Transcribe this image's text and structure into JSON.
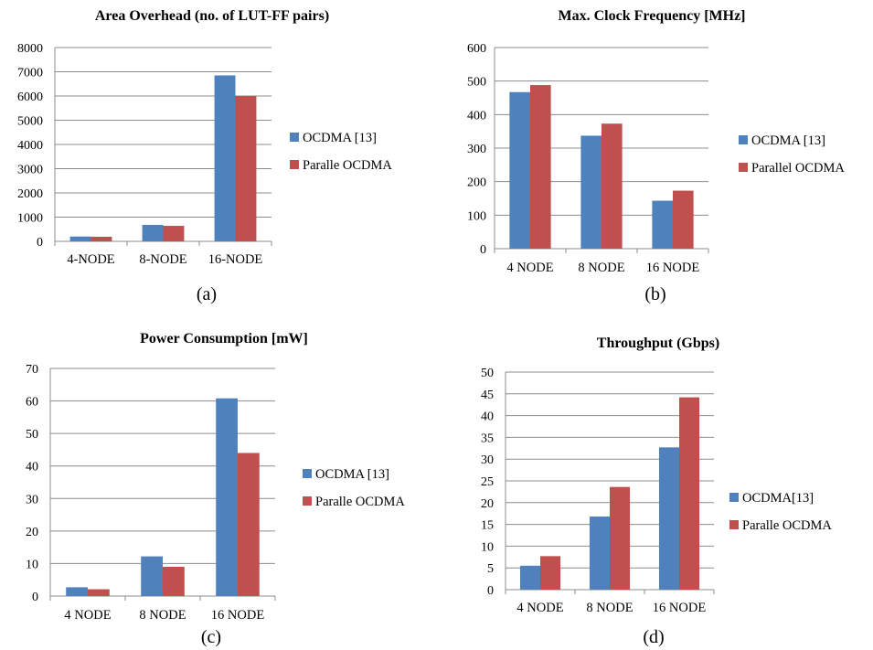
{
  "chart_data": [
    {
      "type": "bar",
      "title": "Area Overhead (no. of LUT-FF pairs)",
      "caption": "(a)",
      "categories": [
        "4-NODE",
        "8-NODE",
        "16-NODE"
      ],
      "ylim": [
        0,
        8000
      ],
      "yticks": [
        0,
        1000,
        2000,
        3000,
        4000,
        5000,
        6000,
        7000,
        8000
      ],
      "series": [
        {
          "name": "OCDMA [13]",
          "color": "#4f81bd",
          "values": [
            200,
            680,
            6850
          ]
        },
        {
          "name": "Paralle OCDMA",
          "color": "#c0504d",
          "values": [
            190,
            640,
            6000
          ]
        }
      ],
      "grid": true,
      "legend_position": "right"
    },
    {
      "type": "bar",
      "title": "Max. Clock Frequency [MHz]",
      "caption": "(b)",
      "categories": [
        "4 NODE",
        "8 NODE",
        "16 NODE"
      ],
      "ylim": [
        0,
        600
      ],
      "yticks": [
        0,
        100,
        200,
        300,
        400,
        500,
        600
      ],
      "series": [
        {
          "name": "OCDMA [13]",
          "color": "#4f81bd",
          "values": [
            467,
            337,
            143
          ]
        },
        {
          "name": "Parallel OCDMA",
          "color": "#c0504d",
          "values": [
            488,
            373,
            173
          ]
        }
      ],
      "grid": true,
      "legend_position": "right"
    },
    {
      "type": "bar",
      "title": "Power Consumption [mW]",
      "caption": "(c)",
      "categories": [
        "4 NODE",
        "8 NODE",
        "16 NODE"
      ],
      "ylim": [
        0,
        70
      ],
      "yticks": [
        0,
        10,
        20,
        30,
        40,
        50,
        60,
        70
      ],
      "series": [
        {
          "name": "OCDMA [13]",
          "color": "#4f81bd",
          "values": [
            2.7,
            12.2,
            60.8
          ]
        },
        {
          "name": "Paralle OCDMA",
          "color": "#c0504d",
          "values": [
            2.1,
            9.0,
            44.0
          ]
        }
      ],
      "grid": true,
      "legend_position": "right"
    },
    {
      "type": "bar",
      "title": "Throughput (Gbps)",
      "caption": "(d)",
      "categories": [
        "4 NODE",
        "8 NODE",
        "16 NODE"
      ],
      "ylim": [
        0,
        50
      ],
      "yticks": [
        0,
        5,
        10,
        15,
        20,
        25,
        30,
        35,
        40,
        45,
        50
      ],
      "series": [
        {
          "name": "OCDMA[13]",
          "color": "#4f81bd",
          "values": [
            5.5,
            16.8,
            32.7
          ]
        },
        {
          "name": "Paralle OCDMA",
          "color": "#c0504d",
          "values": [
            7.7,
            23.6,
            44.2
          ]
        }
      ],
      "grid": true,
      "legend_position": "right"
    }
  ]
}
